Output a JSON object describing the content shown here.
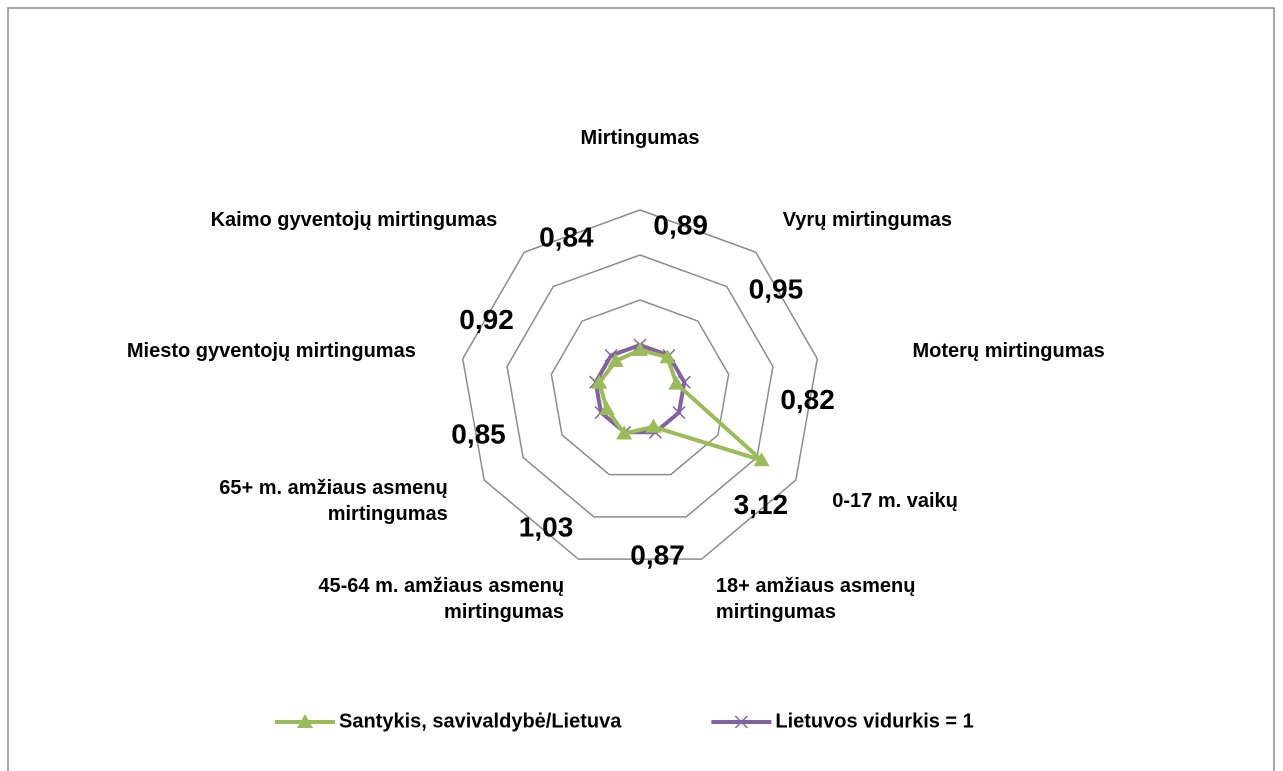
{
  "chart_data": {
    "type": "radar",
    "categories": [
      "Mirtingumas",
      "Vyrų mirtingumas",
      "Moterų mirtingumas",
      "0-17 m. vaikų",
      "18+ amžiaus asmenų mirtingumas",
      "45-64 m. amžiaus asmenų mirtingumas",
      "65+ m. amžiaus asmenų mirtingumas",
      "Miesto gyventojų mirtingumas",
      "Kaimo gyventojų mirtingumas"
    ],
    "series": [
      {
        "name": "Santykis, savivaldybė/Lietuva",
        "color": "#9bbb59",
        "marker": "triangle",
        "values": [
          0.89,
          0.95,
          0.82,
          3.12,
          0.87,
          1.03,
          0.85,
          0.92,
          0.84
        ],
        "value_labels": [
          "0,89",
          "0,95",
          "0,82",
          "3,12",
          "0,87",
          "1,03",
          "0,85",
          "0,92",
          "0,84"
        ]
      },
      {
        "name": "Lietuvos vidurkis = 1",
        "color": "#8064a2",
        "marker": "x",
        "values": [
          1,
          1,
          1,
          1,
          1,
          1,
          1,
          1,
          1
        ]
      }
    ],
    "ylim": [
      0,
      4
    ],
    "yticks": [
      1,
      2,
      3,
      4
    ],
    "grid": true,
    "legend": "bottom"
  }
}
